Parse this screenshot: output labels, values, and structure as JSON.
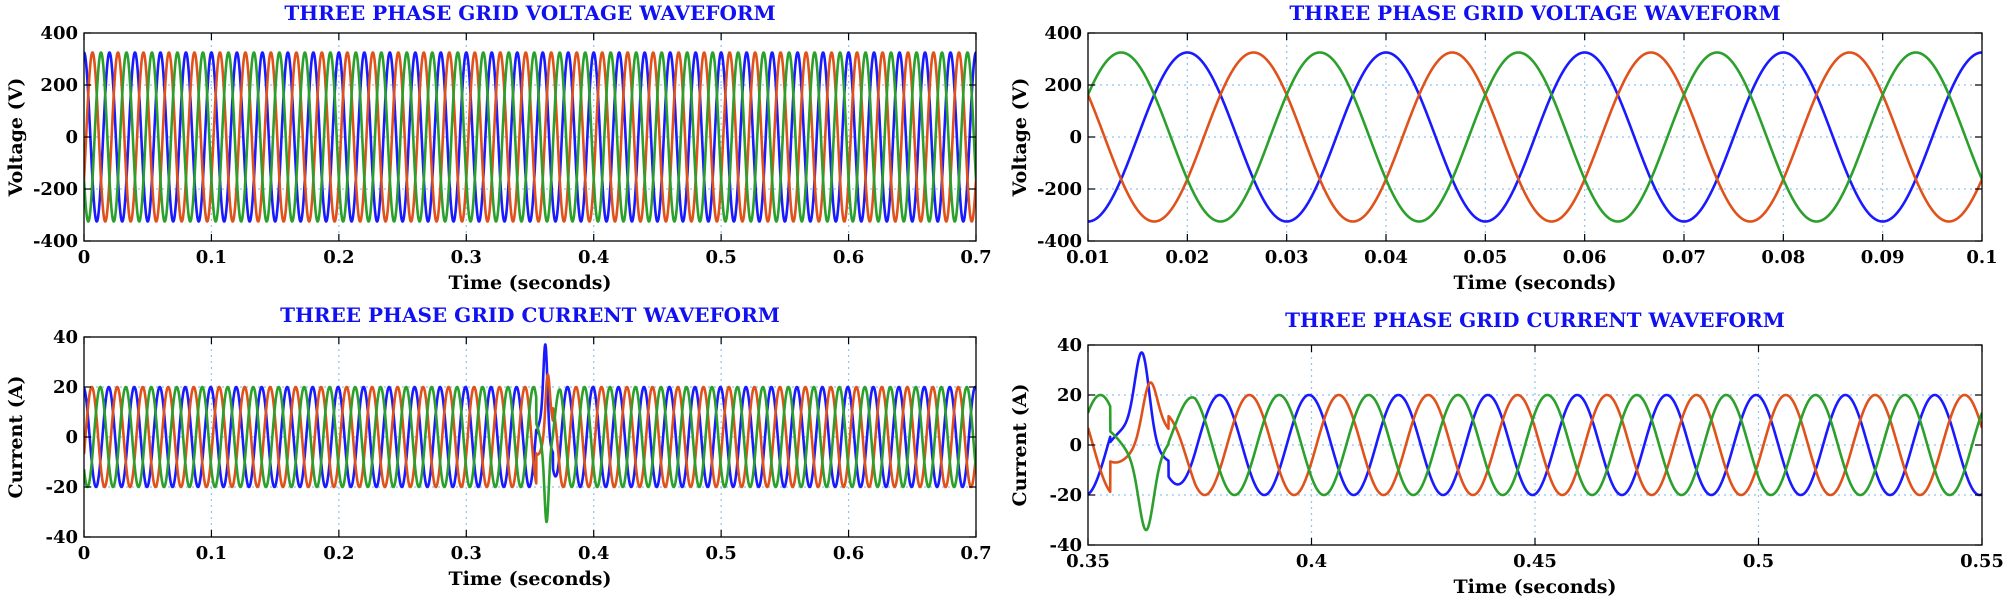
{
  "chart_data": [
    {
      "id": "p1",
      "type": "line",
      "title": "THREE PHASE GRID VOLTAGE WAVEFORM",
      "xlabel": "Time (seconds)",
      "ylabel": "Voltage (V)",
      "xlim": [
        0,
        0.7
      ],
      "ylim": [
        -400,
        400
      ],
      "xticks": [
        0,
        0.1,
        0.2,
        0.3,
        0.4,
        0.5,
        0.6,
        0.7
      ],
      "xtick_labels": [
        "0",
        "0.1",
        "0.2",
        "0.3",
        "0.4",
        "0.5",
        "0.6",
        "0.7"
      ],
      "yticks": [
        400,
        200,
        0,
        -200,
        -400
      ],
      "ytick_labels": [
        "400",
        "200",
        "0",
        "-200",
        "-400"
      ],
      "grid": true,
      "signal": {
        "amplitude": 325,
        "frequency_hz": 50
      },
      "series": [
        {
          "phase_deg": 90,
          "color": "#1a1aff"
        },
        {
          "phase_deg": -30,
          "color": "#e0521b"
        },
        {
          "phase_deg": 210,
          "color": "#2ca02c"
        }
      ]
    },
    {
      "id": "p2",
      "type": "line",
      "title": "THREE PHASE GRID VOLTAGE WAVEFORM",
      "xlabel": "Time (seconds)",
      "ylabel": "Voltage (V)",
      "xlim": [
        0.01,
        0.1
      ],
      "ylim": [
        -400,
        400
      ],
      "xticks": [
        0.01,
        0.02,
        0.03,
        0.04,
        0.05,
        0.06,
        0.07,
        0.08,
        0.09,
        0.1
      ],
      "xtick_labels": [
        "0.01",
        "0.02",
        "0.03",
        "0.04",
        "0.05",
        "0.06",
        "0.07",
        "0.08",
        "0.09",
        "0.1"
      ],
      "yticks": [
        400,
        200,
        0,
        -200,
        -400
      ],
      "ytick_labels": [
        "400",
        "200",
        "0",
        "-200",
        "-400"
      ],
      "grid": true,
      "signal": {
        "amplitude": 325,
        "frequency_hz": 50
      },
      "series": [
        {
          "phase_deg": 90,
          "color": "#1a1aff"
        },
        {
          "phase_deg": -30,
          "color": "#e0521b"
        },
        {
          "phase_deg": 210,
          "color": "#2ca02c"
        }
      ]
    },
    {
      "id": "p3",
      "type": "line",
      "title": "THREE PHASE GRID CURRENT WAVEFORM",
      "xlabel": "Time (seconds)",
      "ylabel": "Current (A)",
      "xlim": [
        0,
        0.7
      ],
      "ylim": [
        -40,
        40
      ],
      "xticks": [
        0,
        0.1,
        0.2,
        0.3,
        0.4,
        0.5,
        0.6,
        0.7
      ],
      "xtick_labels": [
        "0",
        "0.1",
        "0.2",
        "0.3",
        "0.4",
        "0.5",
        "0.6",
        "0.7"
      ],
      "yticks": [
        40,
        20,
        0,
        -20,
        -40
      ],
      "ytick_labels": [
        "40",
        "20",
        "0",
        "-20",
        "-40"
      ],
      "grid": true,
      "signal": {
        "amplitude": 20,
        "frequency_hz": 50,
        "disturbance_start_s": 0.355,
        "disturbance_end_s": 0.368
      },
      "series": [
        {
          "phase_deg": 100,
          "color": "#1a1aff",
          "transient_peak": 37,
          "transient_time_s": 0.362
        },
        {
          "phase_deg": -20,
          "color": "#e0521b",
          "transient_peak": 25,
          "transient_time_s": 0.364
        },
        {
          "phase_deg": 220,
          "color": "#2ca02c",
          "transient_peak": -34,
          "transient_time_s": 0.363
        }
      ]
    },
    {
      "id": "p4",
      "type": "line",
      "title": "THREE PHASE GRID CURRENT WAVEFORM",
      "xlabel": "Time (seconds)",
      "ylabel": "Current (A)",
      "xlim": [
        0.35,
        0.55
      ],
      "ylim": [
        -40,
        40
      ],
      "xticks": [
        0.35,
        0.4,
        0.45,
        0.5,
        0.55
      ],
      "xtick_labels": [
        "0.35",
        "0.4",
        "0.45",
        "0.5",
        "0.55"
      ],
      "yticks": [
        40,
        20,
        0,
        -20,
        -40
      ],
      "ytick_labels": [
        "40",
        "20",
        "0",
        "-20",
        "-40"
      ],
      "grid": true,
      "signal": {
        "amplitude": 20,
        "frequency_hz": 50,
        "disturbance_start_s": 0.355,
        "disturbance_end_s": 0.368
      },
      "series": [
        {
          "phase_deg": 100,
          "color": "#1a1aff",
          "transient_peak": 37,
          "transient_time_s": 0.362
        },
        {
          "phase_deg": -20,
          "color": "#e0521b",
          "transient_peak": 25,
          "transient_time_s": 0.364
        },
        {
          "phase_deg": 220,
          "color": "#2ca02c",
          "transient_peak": -34,
          "transient_time_s": 0.363
        }
      ]
    }
  ]
}
